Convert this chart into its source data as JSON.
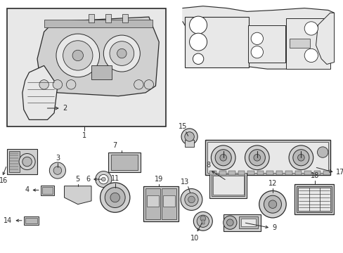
{
  "bg": "#ffffff",
  "lc": "#2a2a2a",
  "gray1": "#e8e8e8",
  "gray2": "#d0d0d0",
  "gray3": "#b8b8b8",
  "gray4": "#a0a0a0",
  "figsize": [
    4.89,
    3.6
  ],
  "dpi": 100
}
